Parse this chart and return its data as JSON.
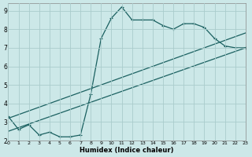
{
  "bg_color": "#cce8e8",
  "grid_color": "#aacccc",
  "line_color": "#1a6060",
  "xlabel": "Humidex (Indice chaleur)",
  "xlim": [
    0,
    23
  ],
  "ylim": [
    2,
    9.4
  ],
  "yticks": [
    2,
    3,
    4,
    5,
    6,
    7,
    8,
    9
  ],
  "xticks": [
    0,
    1,
    2,
    3,
    4,
    5,
    6,
    7,
    8,
    9,
    10,
    11,
    12,
    13,
    14,
    15,
    16,
    17,
    18,
    19,
    20,
    21,
    22,
    23
  ],
  "line1_x": [
    0,
    1,
    2,
    3,
    4,
    5,
    6,
    7,
    8,
    9,
    10,
    11,
    12,
    13,
    14,
    15,
    16,
    17,
    18,
    19,
    20,
    21,
    22,
    23
  ],
  "line1_y": [
    3.3,
    2.6,
    2.85,
    2.3,
    2.45,
    2.2,
    2.2,
    2.3,
    4.5,
    7.5,
    8.6,
    9.2,
    8.5,
    8.5,
    8.5,
    8.2,
    8.0,
    8.3,
    8.3,
    8.1,
    7.5,
    7.1,
    7.0,
    7.0
  ],
  "line2_x": [
    0,
    23
  ],
  "line2_y": [
    2.5,
    7.0
  ],
  "line3_x": [
    0,
    23
  ],
  "line3_y": [
    3.2,
    7.8
  ]
}
